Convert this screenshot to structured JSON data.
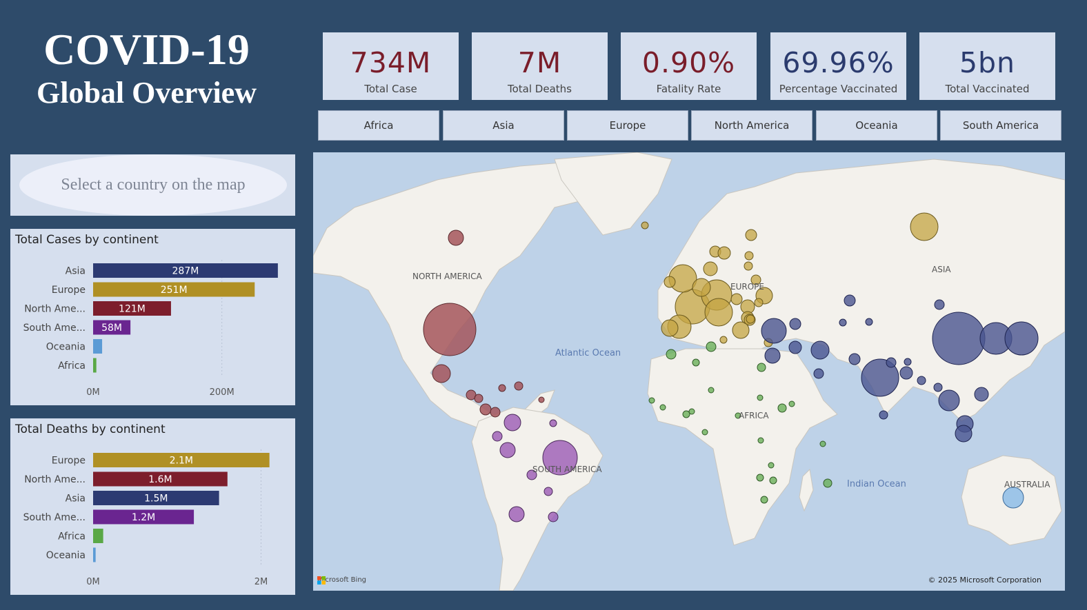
{
  "header": {
    "title_line1": "COVID-19",
    "title_line2": "Global Overview"
  },
  "kpis": [
    {
      "value": "734M",
      "label": "Total Case",
      "color": "red"
    },
    {
      "value": "7M",
      "label": "Total Deaths",
      "color": "red"
    },
    {
      "value": "0.90%",
      "label": "Fatality Rate",
      "color": "red"
    },
    {
      "value": "69.96%",
      "label": "Percentage Vaccinated",
      "color": "navy"
    },
    {
      "value": "5bn",
      "label": "Total Vaccinated",
      "color": "navy"
    }
  ],
  "slicers": [
    "Africa",
    "Asia",
    "Europe",
    "North America",
    "Oceania",
    "South America"
  ],
  "country_select": {
    "placeholder": "Select a country on the map"
  },
  "cases_chart": {
    "title": "Total Cases by continent",
    "categories": [
      "Asia",
      "Europe",
      "North Ame...",
      "South Ame...",
      "Oceania",
      "Africa"
    ],
    "values": [
      287,
      251,
      121,
      58,
      14,
      5
    ],
    "data_labels": [
      "287M",
      "251M",
      "121M",
      "58M",
      "",
      ""
    ],
    "colors": [
      "#2c3a72",
      "#b09024",
      "#7d1e2c",
      "#6a2590",
      "#5b9bd5",
      "#5aa846"
    ],
    "ticks": [
      "0M",
      "200M"
    ],
    "tick_values": [
      0,
      200
    ],
    "xlim": [
      0,
      300
    ]
  },
  "deaths_chart": {
    "title": "Total Deaths by continent",
    "categories": [
      "Europe",
      "North Ame...",
      "Asia",
      "South Ame...",
      "Africa",
      "Oceania"
    ],
    "values": [
      2.1,
      1.6,
      1.5,
      1.2,
      0.12,
      0.03
    ],
    "data_labels": [
      "2.1M",
      "1.6M",
      "1.5M",
      "1.2M",
      "",
      ""
    ],
    "colors": [
      "#b09024",
      "#7d1e2c",
      "#2c3a72",
      "#6a2590",
      "#5aa846",
      "#5b9bd5"
    ],
    "ticks": [
      "0M",
      "2M"
    ],
    "tick_values": [
      0,
      2
    ],
    "xlim": [
      0,
      2.3
    ]
  },
  "map": {
    "labels": {
      "north_america": "NORTH AMERICA",
      "europe": "EUROPE",
      "asia": "ASIA",
      "africa": "AFRICA",
      "south_america": "SOUTH AMERICA",
      "australia": "AUSTRALIA"
    },
    "oceans": {
      "atlantic": "Atlantic Ocean",
      "indian": "Indian Ocean"
    },
    "attribution": "Microsoft Bing",
    "copyright": "© 2025 Microsoft Corporation"
  }
}
